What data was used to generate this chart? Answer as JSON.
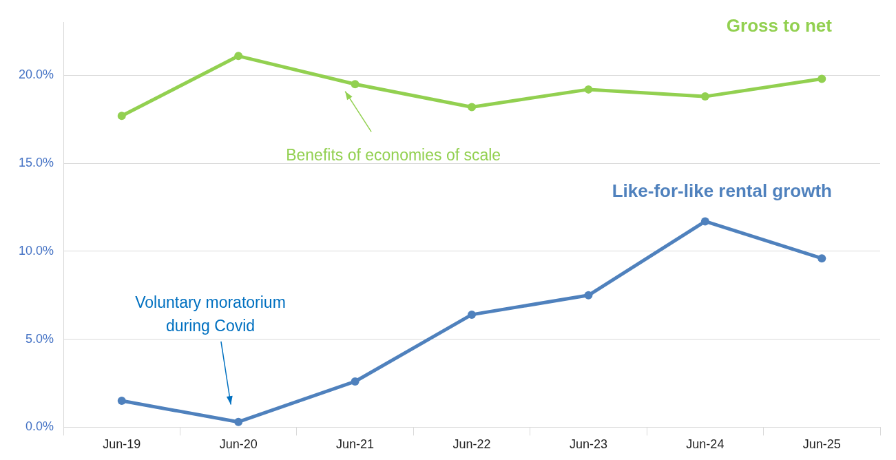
{
  "chart_data": {
    "type": "line",
    "categories": [
      "Jun-19",
      "Jun-20",
      "Jun-21",
      "Jun-22",
      "Jun-23",
      "Jun-24",
      "Jun-25"
    ],
    "series": [
      {
        "name": "Gross to net",
        "color": "#92d050",
        "values": [
          17.7,
          21.1,
          19.5,
          18.2,
          19.2,
          18.8,
          19.8
        ]
      },
      {
        "name": "Like-for-like rental growth",
        "color": "#4f81bd",
        "values": [
          1.5,
          0.3,
          2.6,
          6.4,
          7.5,
          11.7,
          9.6
        ]
      }
    ],
    "ylim": [
      0,
      23
    ],
    "yticks": [
      {
        "value": 0,
        "label": "0.0%"
      },
      {
        "value": 5,
        "label": "5.0%"
      },
      {
        "value": 10,
        "label": "10.0%"
      },
      {
        "value": 15,
        "label": "15.0%"
      },
      {
        "value": 20,
        "label": "20.0%"
      }
    ],
    "grid": "y",
    "legend": false,
    "marker": "circle",
    "line_style": "solid",
    "annotations": [
      "Benefits of economies of scale",
      "Voluntary moratorium\nduring Covid"
    ]
  }
}
